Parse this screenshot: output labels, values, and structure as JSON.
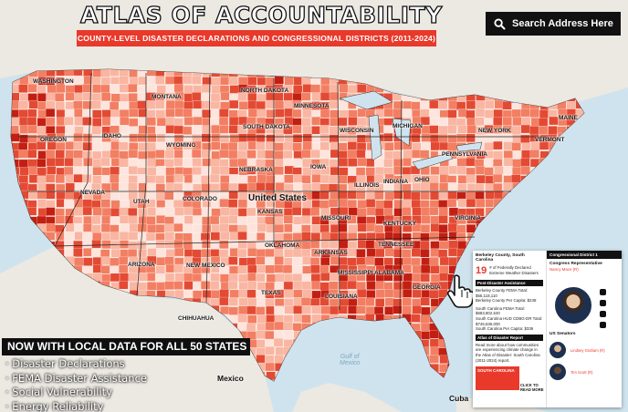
{
  "header": {
    "title": "ATLAS OF ACCOUNTABILITY",
    "subtitle": "COUNTY-LEVEL DISASTER DECLARATIONS AND CONGRESSIONAL DISTRICTS (2011-2024)"
  },
  "search": {
    "label": "Search Address Here",
    "icon": "search-icon"
  },
  "promo": {
    "headline": "NOW WITH LOCAL DATA FOR ALL 50 STATES",
    "bullets": [
      "· Disaster Declarations",
      "· FEMA Disaster Assistance",
      "· Social Vulnerability",
      "· Energy Reliability"
    ]
  },
  "map_labels": {
    "states": [
      "WASHINGTON",
      "OREGON",
      "IDAHO",
      "MONTANA",
      "WYOMING",
      "NEVADA",
      "UTAH",
      "COLORADO",
      "ARIZONA",
      "NEW MEXICO",
      "NORTH DAKOTA",
      "SOUTH DAKOTA",
      "NEBRASKA",
      "KANSAS",
      "OKLAHOMA",
      "TEXAS",
      "MINNESOTA",
      "IOWA",
      "MISSOURI",
      "ARKANSAS",
      "LOUISIANA",
      "WISCONSIN",
      "MICHIGAN",
      "ILLINOIS",
      "INDIANA",
      "OHIO",
      "KENTUCKY",
      "TENNESSEE",
      "MISSISSIPPI",
      "ALABAMA",
      "GEORGIA",
      "PENNSYLVANIA",
      "NEW YORK",
      "VIRGINIA",
      "MAINE",
      "VERMONT",
      "CHIHUAHUA"
    ],
    "country_us": "United States",
    "country_mexico": "Mexico",
    "country_cuba": "Cuba",
    "water_gulf": "Gulf of\nMexico",
    "water_michigan": "MICHIGAN"
  },
  "popup": {
    "county": "Berkeley County, South Carolina",
    "declarations_count": "19",
    "declarations_text": "# of Federally Declared Extreme Weather Disasters",
    "post_disaster_head": "Post-Disaster Assistance",
    "county_fema_total": "Berkeley County FEMA Total: $55,118,110",
    "county_per_capita": "Berkeley County Per Capita: $238",
    "sc_fema_total": "South Carolina FEMA Total: $683,802,540",
    "sc_hud_total": "South Carolina HUD CDBG-DR Total: $746,535,000",
    "sc_per_capita": "South Carolina Per Capita: $336",
    "atlas_head": "Atlas of Disaster Report",
    "atlas_text": "Read more about how communities are experiencing climate change in the Atlas of Disaster: South Carolina (2011-2024) report.",
    "atlas_thumb": "SOUTH CAROLINA",
    "click_more": "CLICK TO\nREAD MORE",
    "district": "Congressional District 1",
    "rep_head": "Congress Representative",
    "rep_name": "Nancy Mace (R)",
    "senators_head": "US Senators",
    "senators": [
      "Lindsey Graham (R)",
      "Tim Scott (R)"
    ]
  },
  "colors": {
    "accent": "#e8392b",
    "dark": "#111111",
    "water": "#cfe3ee",
    "land": "#e9e6df",
    "scale": [
      "#fde4dc",
      "#f9b6a2",
      "#f27f63",
      "#e34a33",
      "#c21f12"
    ]
  }
}
